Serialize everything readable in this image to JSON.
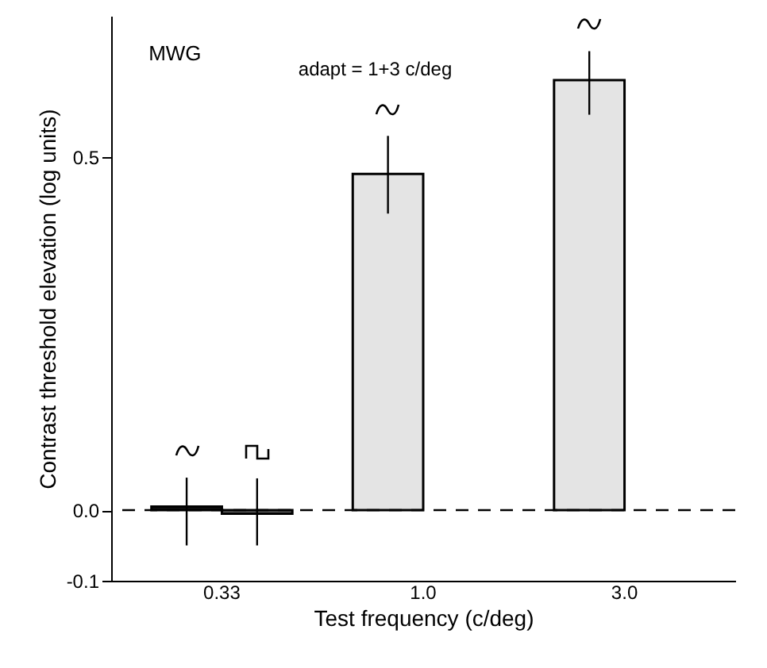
{
  "chart_data": {
    "type": "bar",
    "xlabel": "Test frequency (c/deg)",
    "ylabel": "Contrast threshold elevation (log units)",
    "annotations": [
      "MWG",
      "adapt = 1+3 c/deg"
    ],
    "categories": [
      "0.33",
      "1.0",
      "3.0"
    ],
    "series": [
      {
        "colors": [
          "#111111",
          "#e4e4e4",
          "#e4e4e4"
        ],
        "values": [
          0.005,
          0.476,
          0.609
        ],
        "errors": [
          [
            -0.05,
            0.046
          ],
          [
            0.42,
            0.53
          ],
          [
            0.56,
            0.65
          ]
        ]
      },
      {
        "color": "#666666",
        "values": [
          -0.005,
          null,
          null
        ],
        "errors": [
          [
            -0.05,
            0.045
          ],
          null,
          null
        ]
      }
    ],
    "ylim": [
      -0.1,
      0.7
    ],
    "yticks": [
      {
        "value": -0.1,
        "label": "-0.1"
      },
      {
        "value": 0,
        "label": "0.0"
      },
      {
        "value": 0.5,
        "label": "0.5"
      }
    ],
    "ref_lines": [
      {
        "axis": "y",
        "value": 0,
        "line_style": "dashed"
      }
    ]
  }
}
